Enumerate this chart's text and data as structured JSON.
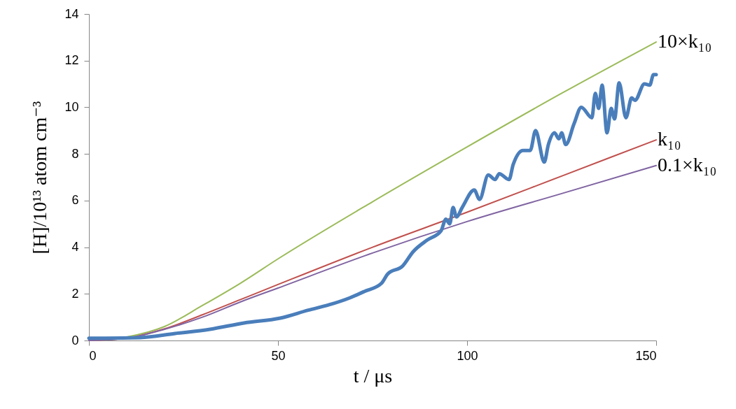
{
  "chart_data": {
    "type": "line",
    "xlabel": "t  / μs",
    "ylabel": "[H]/10¹³  atom cm⁻³",
    "xlim": [
      0,
      150
    ],
    "xticks": [
      0,
      50,
      100,
      150
    ],
    "ylim": [
      0,
      14
    ],
    "yticks": [
      0,
      2,
      4,
      6,
      8,
      10,
      12,
      14
    ],
    "series": [
      {
        "name": "10×k₁₀",
        "color": "#9bbb59",
        "x": [
          0,
          5,
          10,
          20,
          30,
          40,
          50,
          75,
          100,
          125,
          150
        ],
        "values": [
          0,
          0.03,
          0.15,
          0.6,
          1.5,
          2.45,
          3.5,
          5.95,
          8.3,
          10.6,
          12.8
        ]
      },
      {
        "name": "k₁₀",
        "color": "#c0504d",
        "x": [
          0,
          10,
          20,
          30,
          40,
          50,
          75,
          100,
          125,
          150
        ],
        "values": [
          0,
          0.1,
          0.5,
          1.1,
          1.75,
          2.4,
          4.0,
          5.5,
          7.05,
          8.6
        ]
      },
      {
        "name": "0.1×k₁₀",
        "color": "#8064a2",
        "x": [
          0,
          10,
          20,
          30,
          40,
          50,
          75,
          100,
          125,
          150
        ],
        "values": [
          0,
          0.1,
          0.48,
          1.0,
          1.65,
          2.25,
          3.75,
          5.1,
          6.3,
          7.5
        ]
      },
      {
        "color": "#4a7ebb",
        "x": [
          0,
          4.3,
          13.5,
          22.8,
          32,
          41,
          50.6,
          58,
          63.5,
          69,
          72.8,
          77.4,
          79,
          83,
          85.7,
          89.4,
          93.1,
          94.4,
          95.4,
          96.3,
          97.2,
          98.7,
          101.9,
          103.3,
          105.6,
          107.4,
          108.5,
          111.1,
          112.2,
          114.8,
          116.7,
          118.1,
          120.4,
          121.5,
          123.1,
          124.3,
          125,
          126.1,
          128.3,
          130.2,
          133,
          133.9,
          134.8,
          135.7,
          137,
          138.1,
          139,
          140.2,
          142,
          143.5,
          144.4,
          146.9,
          148.3,
          149.3,
          150
        ],
        "values": [
          0.1,
          0.1,
          0.12,
          0.3,
          0.48,
          0.75,
          0.96,
          1.3,
          1.53,
          1.83,
          2.1,
          2.46,
          2.85,
          3.2,
          3.8,
          4.3,
          4.7,
          5.2,
          5.0,
          5.7,
          5.3,
          5.7,
          6.45,
          6.05,
          7.1,
          6.9,
          7.15,
          6.9,
          7.55,
          8.15,
          8.15,
          9.0,
          7.65,
          8.4,
          8.9,
          8.65,
          8.9,
          8.4,
          9.3,
          10.0,
          9.55,
          10.6,
          9.95,
          10.95,
          8.9,
          9.95,
          9.5,
          11.05,
          9.55,
          10.4,
          10.3,
          11.0,
          10.95,
          11.4,
          11.4
        ]
      }
    ]
  }
}
